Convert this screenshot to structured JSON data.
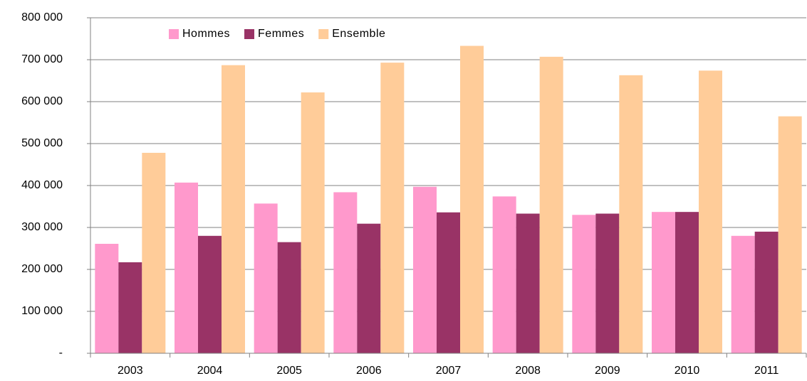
{
  "chart_data": {
    "type": "bar",
    "categories": [
      "2003",
      "2004",
      "2005",
      "2006",
      "2007",
      "2008",
      "2009",
      "2010",
      "2011"
    ],
    "series": [
      {
        "name": "Hommes",
        "color": "#ff99cc",
        "values": [
          261000,
          407000,
          357000,
          384000,
          397000,
          374000,
          330000,
          337000,
          280000
        ]
      },
      {
        "name": "Femmes",
        "color": "#993366",
        "values": [
          217000,
          280000,
          265000,
          309000,
          336000,
          333000,
          333000,
          337000,
          290000
        ]
      },
      {
        "name": "Ensemble",
        "color": "#ffcc99",
        "values": [
          478000,
          687000,
          622000,
          693000,
          733000,
          707000,
          663000,
          674000,
          565000
        ]
      }
    ],
    "ylim": [
      0,
      800000
    ],
    "yticks": [
      {
        "value": 0,
        "label": "-"
      },
      {
        "value": 100000,
        "label": "100 000"
      },
      {
        "value": 200000,
        "label": "200 000"
      },
      {
        "value": 300000,
        "label": "300 000"
      },
      {
        "value": 400000,
        "label": "400 000"
      },
      {
        "value": 500000,
        "label": "500 000"
      },
      {
        "value": 600000,
        "label": "600 000"
      },
      {
        "value": 700000,
        "label": "700 000"
      },
      {
        "value": 800000,
        "label": "800 000"
      }
    ],
    "grid": true,
    "legend": "top-left"
  }
}
